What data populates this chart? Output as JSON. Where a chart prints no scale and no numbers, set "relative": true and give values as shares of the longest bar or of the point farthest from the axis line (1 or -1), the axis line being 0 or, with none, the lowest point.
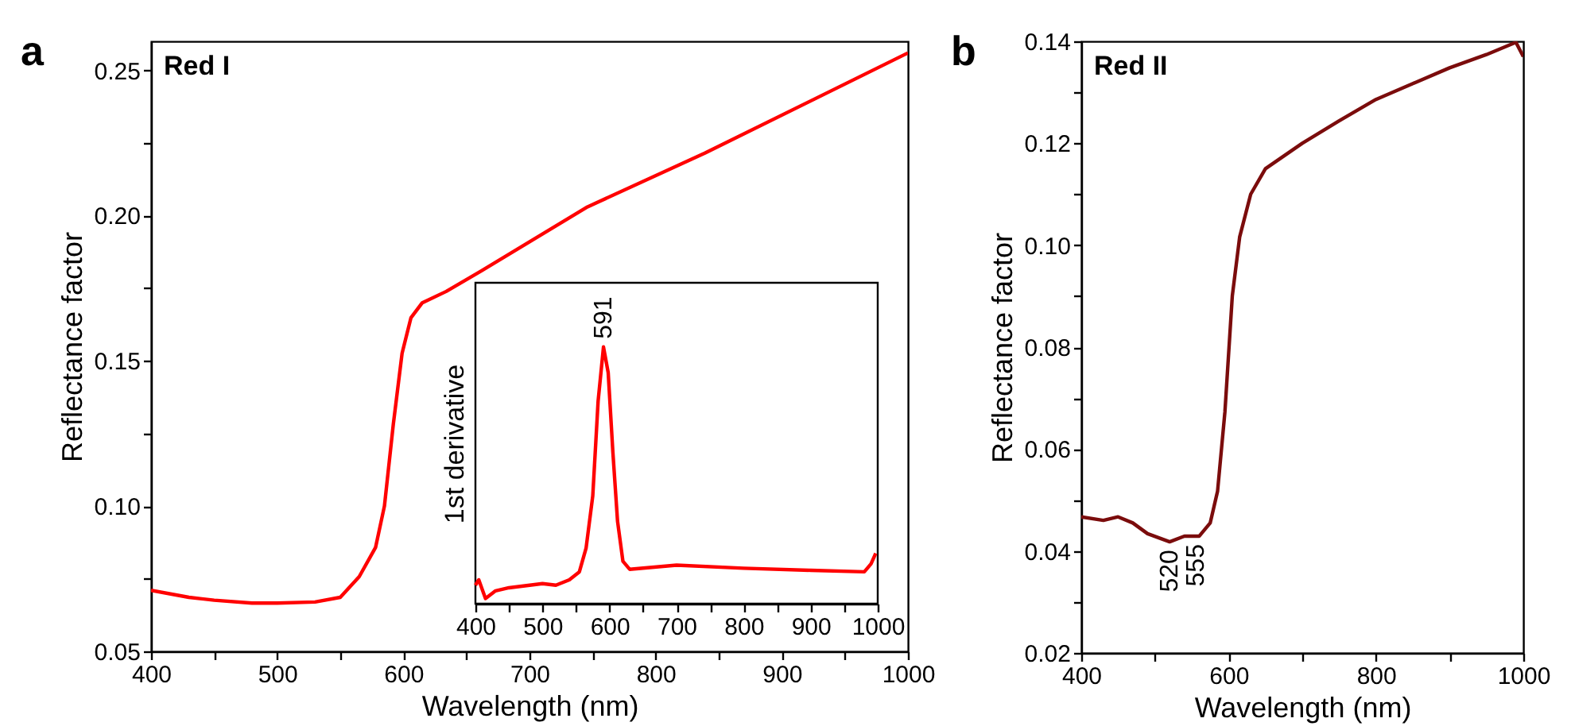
{
  "chart_data": [
    {
      "type": "line",
      "title": "Red I",
      "xlabel": "Wavelength (nm)",
      "ylabel": "Reflectance factor",
      "annotations": [
        "a"
      ],
      "x": [
        400,
        430,
        450,
        480,
        500,
        530,
        550,
        565,
        578,
        585,
        592,
        599,
        606,
        615,
        634,
        662,
        746,
        839,
        1000
      ],
      "series": [
        {
          "color": "#ff0000",
          "values": [
            0.071,
            0.0686,
            0.0676,
            0.0666,
            0.0666,
            0.067,
            0.0686,
            0.0757,
            0.0858,
            0.1,
            0.128,
            0.1526,
            0.1648,
            0.17,
            0.1739,
            0.181,
            0.203,
            0.2215,
            0.256
          ]
        }
      ],
      "xlim": [
        400,
        1000
      ],
      "ylim": [
        0.05,
        0.26
      ],
      "xticks": [
        400,
        {
          "value": 450,
          "label": null
        },
        500,
        {
          "value": 550,
          "label": null
        },
        600,
        {
          "value": 650,
          "label": null
        },
        700,
        {
          "value": 750,
          "label": null
        },
        800,
        {
          "value": 850,
          "label": null
        },
        900,
        {
          "value": 950,
          "label": null
        },
        1000
      ],
      "yticks": [
        0.05,
        {
          "value": 0.075,
          "label": null
        },
        {
          "value": 0.1,
          "label": "0.10"
        },
        {
          "value": 0.125,
          "label": null
        },
        0.15,
        {
          "value": 0.175,
          "label": null
        },
        {
          "value": 0.2,
          "label": "0.20"
        },
        {
          "value": 0.225,
          "label": null
        },
        0.25
      ],
      "grid": false,
      "line_style": "solid"
    },
    {
      "type": "line",
      "relative": true,
      "ylabel": "1st derivative",
      "tick_labels": "x",
      "annotations": [
        {
          "text": "591",
          "x": 591,
          "y": 1.0
        }
      ],
      "x": [
        400,
        405,
        415,
        430,
        450,
        500,
        520,
        540,
        555,
        565,
        575,
        583,
        591,
        598,
        605,
        612,
        620,
        630,
        700,
        800,
        900,
        980,
        990,
        997
      ],
      "series": [
        {
          "color": "#ff0000",
          "values": [
            0.072,
            0.093,
            0.02,
            0.05,
            0.062,
            0.078,
            0.072,
            0.093,
            0.124,
            0.216,
            0.42,
            0.79,
            1.0,
            0.9,
            0.59,
            0.32,
            0.165,
            0.134,
            0.15,
            0.138,
            0.13,
            0.124,
            0.155,
            0.196
          ]
        }
      ],
      "xlim": [
        400,
        1000
      ],
      "xticks": [
        400,
        {
          "value": 450,
          "label": null
        },
        500,
        {
          "value": 550,
          "label": null
        },
        600,
        {
          "value": 650,
          "label": null
        },
        700,
        {
          "value": 750,
          "label": null
        },
        800,
        {
          "value": 850,
          "label": null
        },
        900,
        {
          "value": 950,
          "label": null
        },
        1000
      ],
      "grid": false,
      "line_style": "solid"
    },
    {
      "type": "line",
      "title": "Red II",
      "xlabel": "Wavelength (nm)",
      "ylabel": "Reflectance factor",
      "annotations": [
        "b",
        {
          "text": "520",
          "x": 520,
          "y": 0.0418
        },
        {
          "text": "555",
          "x": 555,
          "y": 0.0429
        }
      ],
      "x": [
        400,
        430,
        450,
        470,
        490,
        520,
        540,
        560,
        575,
        585,
        595,
        605,
        615,
        630,
        650,
        700,
        750,
        800,
        850,
        900,
        950,
        990,
        1000
      ],
      "series": [
        {
          "color": "#7b0c0c",
          "values": [
            0.0467,
            0.046,
            0.0467,
            0.0455,
            0.0434,
            0.0418,
            0.0429,
            0.0429,
            0.0455,
            0.0517,
            0.0673,
            0.09,
            0.1016,
            0.11,
            0.115,
            0.12,
            0.1244,
            0.1286,
            0.1317,
            0.1348,
            0.1374,
            0.1398,
            0.137
          ]
        }
      ],
      "xlim": [
        400,
        1000
      ],
      "ylim": [
        0.02,
        0.14
      ],
      "xticks": [
        400,
        {
          "value": 500,
          "label": null
        },
        600,
        {
          "value": 700,
          "label": null
        },
        800,
        {
          "value": 900,
          "label": null
        },
        1000
      ],
      "yticks": [
        0.02,
        {
          "value": 0.03,
          "label": null
        },
        0.04,
        {
          "value": 0.05,
          "label": null
        },
        0.06,
        {
          "value": 0.07,
          "label": null
        },
        0.08,
        {
          "value": 0.09,
          "label": null
        },
        {
          "value": 0.1,
          "label": "0.10"
        },
        {
          "value": 0.11,
          "label": null
        },
        0.12,
        {
          "value": 0.13,
          "label": null
        },
        0.14
      ],
      "grid": false,
      "line_style": "solid"
    }
  ]
}
